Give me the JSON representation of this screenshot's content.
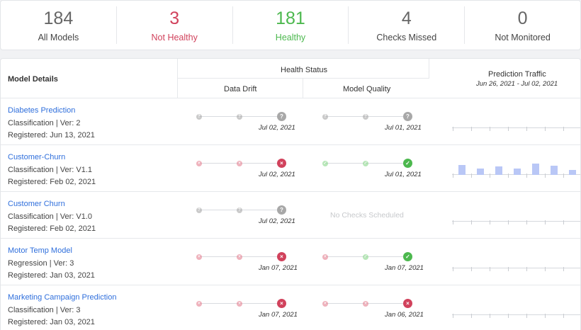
{
  "summary": [
    {
      "num": "184",
      "label": "All Models",
      "color": "#666666"
    },
    {
      "num": "3",
      "label": "Not Healthy",
      "color": "#d1425c"
    },
    {
      "num": "181",
      "label": "Healthy",
      "color": "#4cb84e"
    },
    {
      "num": "4",
      "label": "Checks Missed",
      "color": "#666666"
    },
    {
      "num": "0",
      "label": "Not Monitored",
      "color": "#666666"
    }
  ],
  "table": {
    "col_model": "Model Details",
    "col_health": "Health Status",
    "col_drift": "Data Drift",
    "col_quality": "Model Quality",
    "col_traffic": "Prediction Traffic",
    "traffic_range": "Jun 26, 2021 - Jul 02, 2021",
    "no_checks": "No Checks Scheduled"
  },
  "rows": [
    {
      "name": "Diabetes Prediction",
      "info": "Classification | Ver: 2",
      "registered": "Registered: Jun 13, 2021",
      "drift": {
        "status": "unknown",
        "date": "Jul 02, 2021"
      },
      "quality": {
        "status": "unknown",
        "date": "Jul 01, 2021"
      },
      "traffic": []
    },
    {
      "name": "Customer-Churn",
      "info": "Classification | Ver: V1.1",
      "registered": "Registered: Feb 02, 2021",
      "drift": {
        "status": "fail",
        "date": "Jul 02, 2021"
      },
      "quality": {
        "status": "ok",
        "date": "Jul 01, 2021"
      },
      "traffic": [
        0.55,
        0.35,
        0.45,
        0.35,
        0.6,
        0.5,
        0.25
      ]
    },
    {
      "name": "Customer Churn",
      "info": "Classification | Ver: V1.0",
      "registered": "Registered: Feb 02, 2021",
      "drift": {
        "status": "unknown",
        "date": "Jul 02, 2021"
      },
      "quality": null,
      "traffic": []
    },
    {
      "name": "Motor Temp Model",
      "info": "Regression | Ver: 3",
      "registered": "Registered: Jan 03, 2021",
      "drift": {
        "status": "fail",
        "date": "Jan 07, 2021"
      },
      "quality": {
        "status": "ok",
        "date": "Jan 07, 2021",
        "first": "fail"
      },
      "traffic": []
    },
    {
      "name": "Marketing Campaign Prediction",
      "info": "Classification | Ver: 3",
      "registered": "Registered: Jan 03, 2021",
      "drift": {
        "status": "fail",
        "date": "Jan 07, 2021"
      },
      "quality": {
        "status": "fail",
        "date": "Jan 06, 2021"
      },
      "traffic": []
    }
  ]
}
